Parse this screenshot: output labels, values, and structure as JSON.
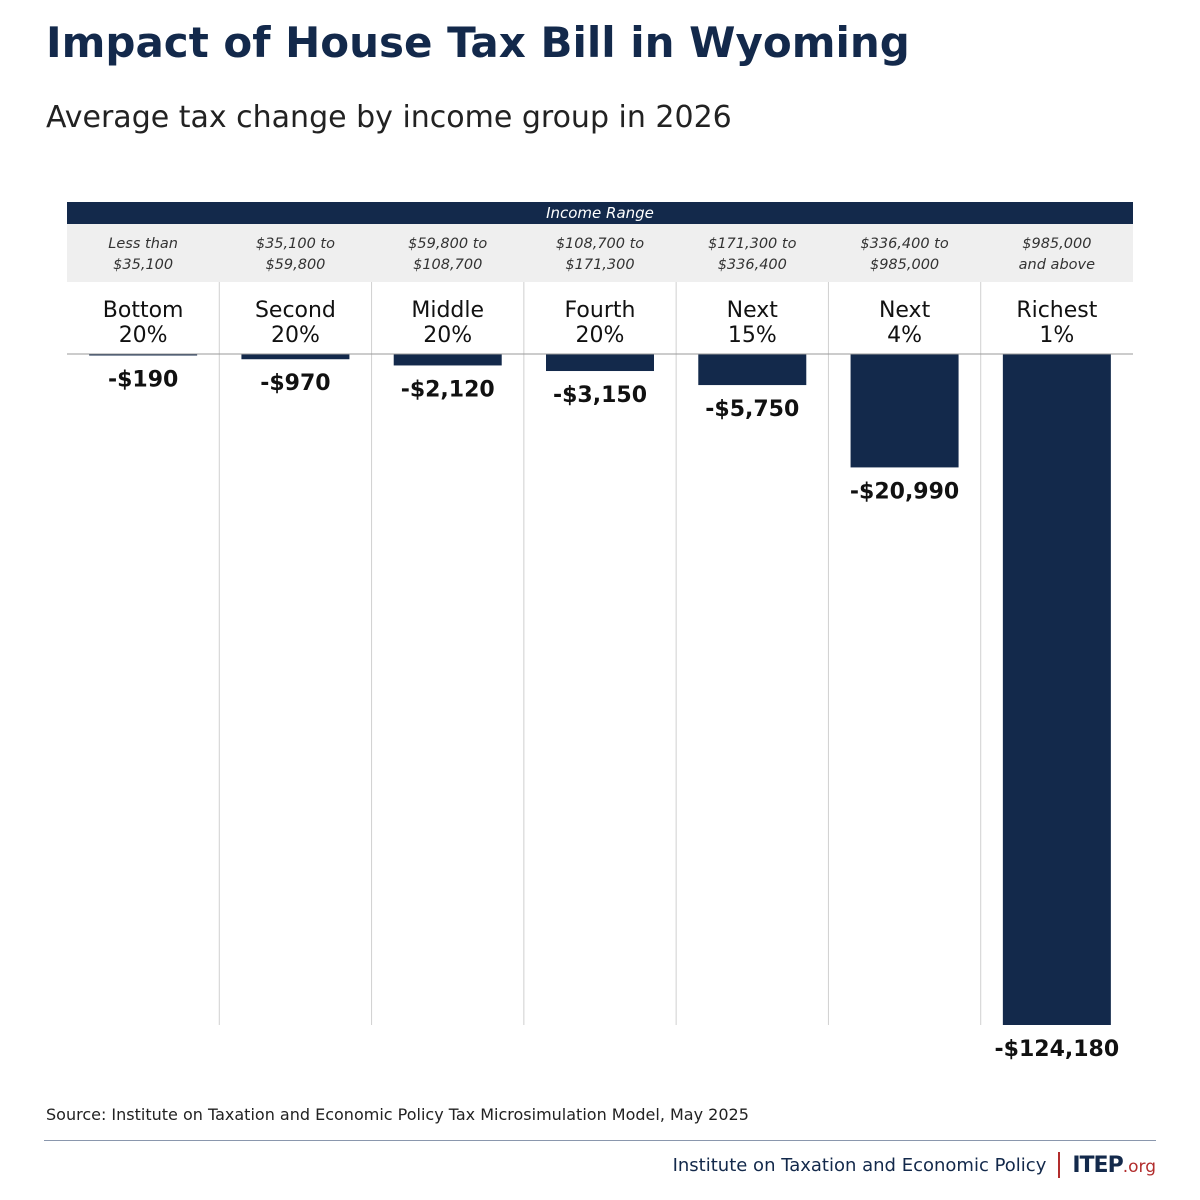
{
  "title": "Impact of House Tax Bill in Wyoming",
  "subtitle": "Average tax change by income group in 2026",
  "range_header": "Income Range",
  "source": "Source: Institute on Taxation and Economic Policy Tax Microsimulation Model, May 2025",
  "footer": {
    "org_name": "Institute on Taxation and Economic Policy",
    "logo_main": "ITEP",
    "logo_suffix": ".org"
  },
  "colors": {
    "bar": "#13294b",
    "header": "#13294b",
    "strip": "#efefef",
    "accent": "#b22d2d"
  },
  "chart_data": {
    "type": "bar",
    "categories": [
      [
        "Bottom",
        "20%"
      ],
      [
        "Second",
        "20%"
      ],
      [
        "Middle",
        "20%"
      ],
      [
        "Fourth",
        "20%"
      ],
      [
        "Next",
        "15%"
      ],
      [
        "Next",
        "4%"
      ],
      [
        "Richest",
        "1%"
      ]
    ],
    "income_ranges": [
      [
        "Less than",
        "$35,100"
      ],
      [
        "$35,100 to",
        "$59,800"
      ],
      [
        "$59,800 to",
        "$108,700"
      ],
      [
        "$108,700 to",
        "$171,300"
      ],
      [
        "$171,300 to",
        "$336,400"
      ],
      [
        "$336,400 to",
        "$985,000"
      ],
      [
        "$985,000",
        "and above"
      ]
    ],
    "values": [
      -190,
      -970,
      -2120,
      -3150,
      -5750,
      -20990,
      -124180
    ],
    "value_labels": [
      "-$190",
      "-$970",
      "-$2,120",
      "-$3,150",
      "-$5,750",
      "-$20,990",
      "-$124,180"
    ],
    "ylim": [
      -124180,
      0
    ],
    "grid": false
  }
}
